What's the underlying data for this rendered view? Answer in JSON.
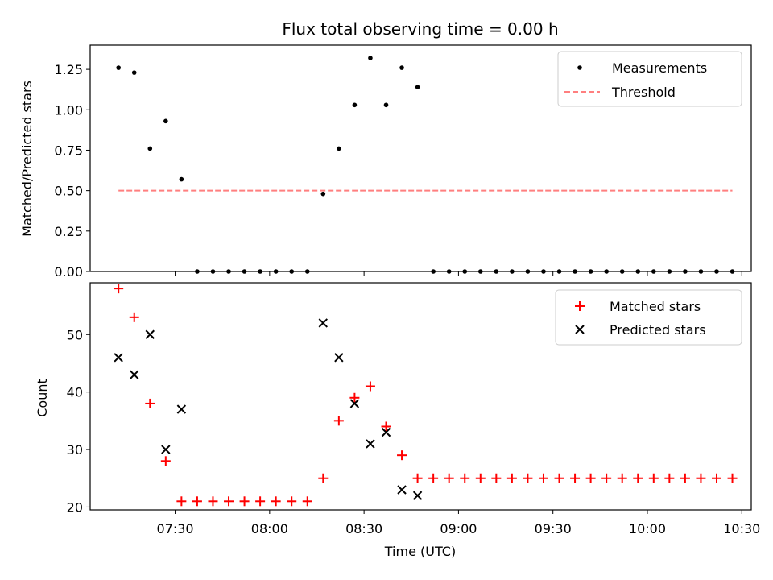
{
  "chart_data": [
    {
      "type": "scatter",
      "title": "Flux total observing time = 0.00 h",
      "xlabel": "",
      "ylabel": "Matched/Predicted stars",
      "ylim": [
        0,
        1.4
      ],
      "yticks": [
        "0.00",
        "0.25",
        "0.50",
        "0.75",
        "1.00",
        "1.25"
      ],
      "legend": {
        "position": "top-right",
        "entries": [
          "Measurements",
          "Threshold"
        ]
      },
      "colors": {
        "measurements": "#000000",
        "threshold": "#ff7f7f"
      },
      "series": [
        {
          "name": "Measurements",
          "marker": "dot",
          "x": [
            "07:12",
            "07:17",
            "07:22",
            "07:27",
            "07:32",
            "07:37",
            "07:42",
            "07:47",
            "07:52",
            "07:57",
            "08:02",
            "08:07",
            "08:12",
            "08:17",
            "08:22",
            "08:27",
            "08:32",
            "08:37",
            "08:42",
            "08:47",
            "08:52",
            "08:57",
            "09:02",
            "09:07",
            "09:12",
            "09:17",
            "09:22",
            "09:27",
            "09:32",
            "09:37",
            "09:42",
            "09:47",
            "09:52",
            "09:57",
            "10:02",
            "10:07",
            "10:12",
            "10:17",
            "10:22",
            "10:27"
          ],
          "y": [
            1.26,
            1.23,
            0.76,
            0.93,
            0.57,
            0,
            0,
            0,
            0,
            0,
            0,
            0,
            0,
            0.48,
            0.76,
            1.03,
            1.32,
            1.03,
            1.26,
            1.14,
            0,
            0,
            0,
            0,
            0,
            0,
            0,
            0,
            0,
            0,
            0,
            0,
            0,
            0,
            0,
            0,
            0,
            0,
            0,
            0
          ]
        },
        {
          "name": "Threshold",
          "style": "dashed",
          "x": [
            "07:12",
            "10:27"
          ],
          "y": [
            0.5,
            0.5
          ]
        }
      ]
    },
    {
      "type": "scatter",
      "title": "",
      "xlabel": "Time (UTC)",
      "ylabel": "Count",
      "ylim": [
        19.5,
        59
      ],
      "yticks": [
        "20",
        "30",
        "40",
        "50"
      ],
      "xticks": [
        "07:30",
        "08:00",
        "08:30",
        "09:00",
        "09:30",
        "10:00",
        "10:30"
      ],
      "xlim": [
        "07:03",
        "10:33"
      ],
      "legend": {
        "position": "top-right",
        "entries": [
          "Matched stars",
          "Predicted stars"
        ]
      },
      "colors": {
        "matched": "#ff0000",
        "predicted": "#000000"
      },
      "series": [
        {
          "name": "Matched stars",
          "marker": "plus",
          "x": [
            "07:12",
            "07:17",
            "07:22",
            "07:27",
            "07:32",
            "07:37",
            "07:42",
            "07:47",
            "07:52",
            "07:57",
            "08:02",
            "08:07",
            "08:12",
            "08:17",
            "08:22",
            "08:27",
            "08:32",
            "08:37",
            "08:42",
            "08:47",
            "08:52",
            "08:57",
            "09:02",
            "09:07",
            "09:12",
            "09:17",
            "09:22",
            "09:27",
            "09:32",
            "09:37",
            "09:42",
            "09:47",
            "09:52",
            "09:57",
            "10:02",
            "10:07",
            "10:12",
            "10:17",
            "10:22",
            "10:27"
          ],
          "y": [
            58,
            53,
            38,
            28,
            21,
            21,
            21,
            21,
            21,
            21,
            21,
            21,
            21,
            25,
            35,
            39,
            41,
            34,
            29,
            25,
            25,
            25,
            25,
            25,
            25,
            25,
            25,
            25,
            25,
            25,
            25,
            25,
            25,
            25,
            25,
            25,
            25,
            25,
            25,
            25
          ]
        },
        {
          "name": "Predicted stars",
          "marker": "x",
          "x": [
            "07:12",
            "07:17",
            "07:22",
            "07:27",
            "07:32",
            "08:17",
            "08:22",
            "08:27",
            "08:32",
            "08:37",
            "08:42",
            "08:47"
          ],
          "y": [
            46,
            43,
            50,
            30,
            37,
            52,
            46,
            38,
            31,
            33,
            23,
            22
          ]
        }
      ]
    }
  ]
}
